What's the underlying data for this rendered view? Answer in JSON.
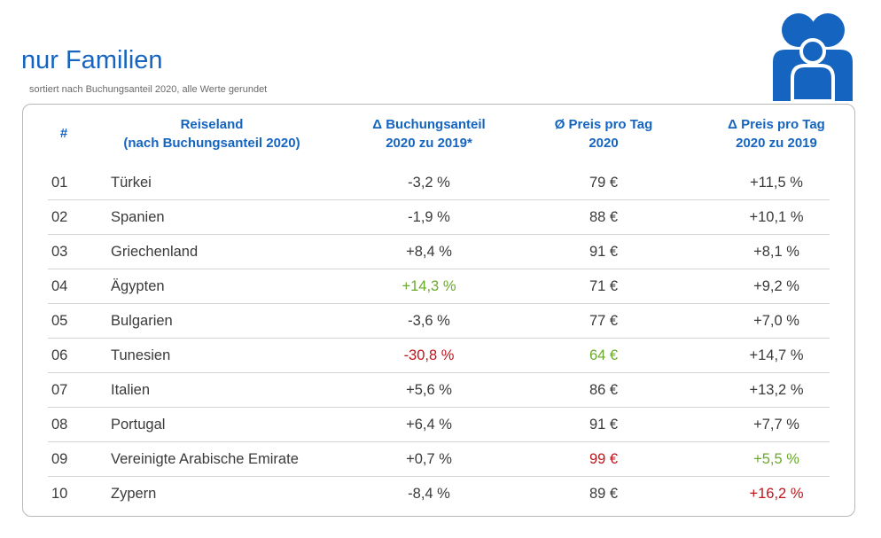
{
  "header": {
    "title": "nur Familien",
    "subtitle": "sortiert nach Buchungsanteil 2020, alle Werte gerundet"
  },
  "colors": {
    "brand_blue": "#1565c0",
    "positive_green": "#6aaa2a",
    "negative_red": "#c0141b"
  },
  "icons": {
    "header_icon": "family-icon"
  },
  "table": {
    "columns": [
      {
        "line1": "#",
        "line2": ""
      },
      {
        "line1": "Reiseland",
        "line2": "(nach Buchungsanteil 2020)"
      },
      {
        "line1": "Δ Buchungsanteil",
        "line2": "2020 zu 2019*"
      },
      {
        "line1": "Ø Preis pro Tag",
        "line2": "2020"
      },
      {
        "line1": "Δ Preis pro Tag",
        "line2": "2020 zu 2019"
      }
    ],
    "rows": [
      {
        "rank": "01",
        "country": "Türkei",
        "share_change": "-3,2 %",
        "price": "79 €",
        "price_change": "+11,5 %"
      },
      {
        "rank": "02",
        "country": "Spanien",
        "share_change": "-1,9 %",
        "price": "88 €",
        "price_change": "+10,1 %"
      },
      {
        "rank": "03",
        "country": "Griechenland",
        "share_change": "+8,4 %",
        "price": "91 €",
        "price_change": "+8,1 %"
      },
      {
        "rank": "04",
        "country": "Ägypten",
        "share_change": "+14,3 %",
        "price": "71 €",
        "price_change": "+9,2 %"
      },
      {
        "rank": "05",
        "country": "Bulgarien",
        "share_change": "-3,6 %",
        "price": "77 €",
        "price_change": "+7,0 %"
      },
      {
        "rank": "06",
        "country": "Tunesien",
        "share_change": "-30,8 %",
        "price": "64 €",
        "price_change": "+14,7 %"
      },
      {
        "rank": "07",
        "country": "Italien",
        "share_change": "+5,6 %",
        "price": "86 €",
        "price_change": "+13,2 %"
      },
      {
        "rank": "08",
        "country": "Portugal",
        "share_change": "+6,4 %",
        "price": "91 €",
        "price_change": "+7,7 %"
      },
      {
        "rank": "09",
        "country": "Vereinigte Arabische Emirate",
        "share_change": "+0,7 %",
        "price": "99 €",
        "price_change": "+5,5 %"
      },
      {
        "rank": "10",
        "country": "Zypern",
        "share_change": "-8,4 %",
        "price": "89 €",
        "price_change": "+16,2 %"
      }
    ]
  }
}
